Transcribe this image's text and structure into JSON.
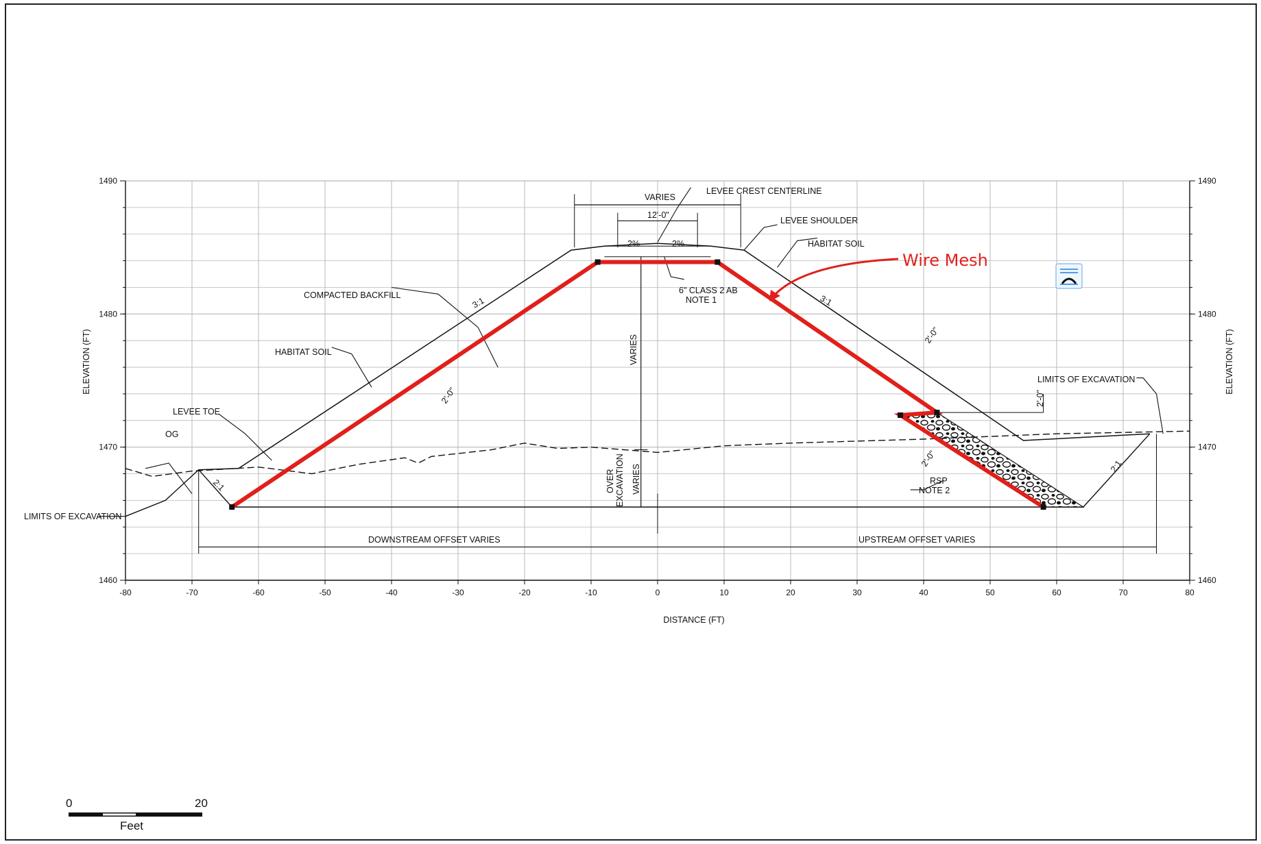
{
  "chart_data": {
    "type": "diagram",
    "xlabel": "DISTANCE (FT)",
    "ylabel": "ELEVATION (FT)",
    "xlim": [
      -80,
      80
    ],
    "ylim": [
      1460,
      1490
    ],
    "x_ticks": [
      "-80",
      "-70",
      "-60",
      "-50",
      "-40",
      "-30",
      "-20",
      "-10",
      "0",
      "10",
      "20",
      "30",
      "40",
      "50",
      "60",
      "70",
      "80"
    ],
    "y_ticks": [
      "1460",
      "1470",
      "1480",
      "1490"
    ],
    "levee_surface": [
      [
        -69,
        1468.3
      ],
      [
        -63,
        1468.4
      ],
      [
        -13,
        1484.8
      ],
      [
        -8,
        1485.1
      ],
      [
        0,
        1485.3
      ],
      [
        8,
        1485.1
      ],
      [
        13,
        1484.8
      ],
      [
        55,
        1470.5
      ],
      [
        74,
        1471
      ]
    ],
    "excavation_left": [
      [
        -80,
        1464.8
      ],
      [
        -74,
        1466
      ],
      [
        -69,
        1468.3
      ],
      [
        -64,
        1465.5
      ]
    ],
    "excavation_right": [
      [
        64,
        1465.5
      ],
      [
        74,
        1471
      ]
    ],
    "original_ground": [
      [
        -80,
        1468.4
      ],
      [
        -76,
        1467.8
      ],
      [
        -70,
        1468.2
      ],
      [
        -60,
        1468.5
      ],
      [
        -52,
        1468
      ],
      [
        -45,
        1468.7
      ],
      [
        -38,
        1469.2
      ],
      [
        -36,
        1468.8
      ],
      [
        -34,
        1469.3
      ],
      [
        -25,
        1469.8
      ],
      [
        -20,
        1470.3
      ],
      [
        -15,
        1469.9
      ],
      [
        -10,
        1470
      ],
      [
        0,
        1469.6
      ],
      [
        10,
        1470.1
      ],
      [
        20,
        1470.3
      ],
      [
        40,
        1470.6
      ],
      [
        60,
        1471
      ],
      [
        80,
        1471.2
      ]
    ],
    "wire_mesh": [
      [
        -64,
        1465.5
      ],
      [
        -9,
        1483.9
      ],
      [
        9,
        1483.9
      ],
      [
        42,
        1472.6
      ],
      [
        36.5,
        1472.4
      ],
      [
        58,
        1465.5
      ]
    ],
    "rsp_polygon": [
      [
        42,
        1472.6
      ],
      [
        36.5,
        1472.4
      ],
      [
        58,
        1465.5
      ],
      [
        64,
        1465.5
      ]
    ],
    "annotations": {
      "varies_top": "VARIES",
      "crest_width": "12'-0\"",
      "crest_centerline": "LEVEE CREST CENTERLINE",
      "shoulder": "LEVEE SHOULDER",
      "habitat_soil_right": "HABITAT SOIL",
      "compacted_backfill": "COMPACTED BACKFILL",
      "habitat_soil_left": "HABITAT SOIL",
      "slope_left": "3:1",
      "slope_right": "3:1",
      "grade_left": "2%",
      "grade_right": "2%",
      "ab_line1": "6\" CLASS 2 AB",
      "ab_line2": "NOTE 1",
      "varies_vertical": "VARIES",
      "thickness_left": "2'-0\"",
      "thickness_right_upper": "2'-0\"",
      "thickness_right_rsp": "2'-0\"",
      "thickness_right_step": "2'-0\"",
      "levee_toe": "LEVEE TOE",
      "og": "OG",
      "limits_left": "LIMITS OF EXCAVATION",
      "limits_right": "LIMITS OF EXCAVATION",
      "slope_21_left": "2:1",
      "slope_21_right": "2:1",
      "over_ex_1": "OVER",
      "over_ex_2": "EXCAVATION",
      "over_ex_3": "VARIES",
      "rsp_1": "RSP",
      "rsp_2": "NOTE 2",
      "downstream": "DOWNSTREAM OFFSET VARIES",
      "upstream": "UPSTREAM OFFSET VARIES",
      "wire_mesh": "Wire Mesh"
    }
  },
  "scale_bar": {
    "start": "0",
    "end": "20",
    "unit": "Feet"
  },
  "colors": {
    "mesh": "#e0201b",
    "ink": "#111111",
    "grid": "#b8b8b8",
    "icon": "#1e7fd8"
  },
  "icons": {
    "overlay": "bridge-arch-icon"
  }
}
